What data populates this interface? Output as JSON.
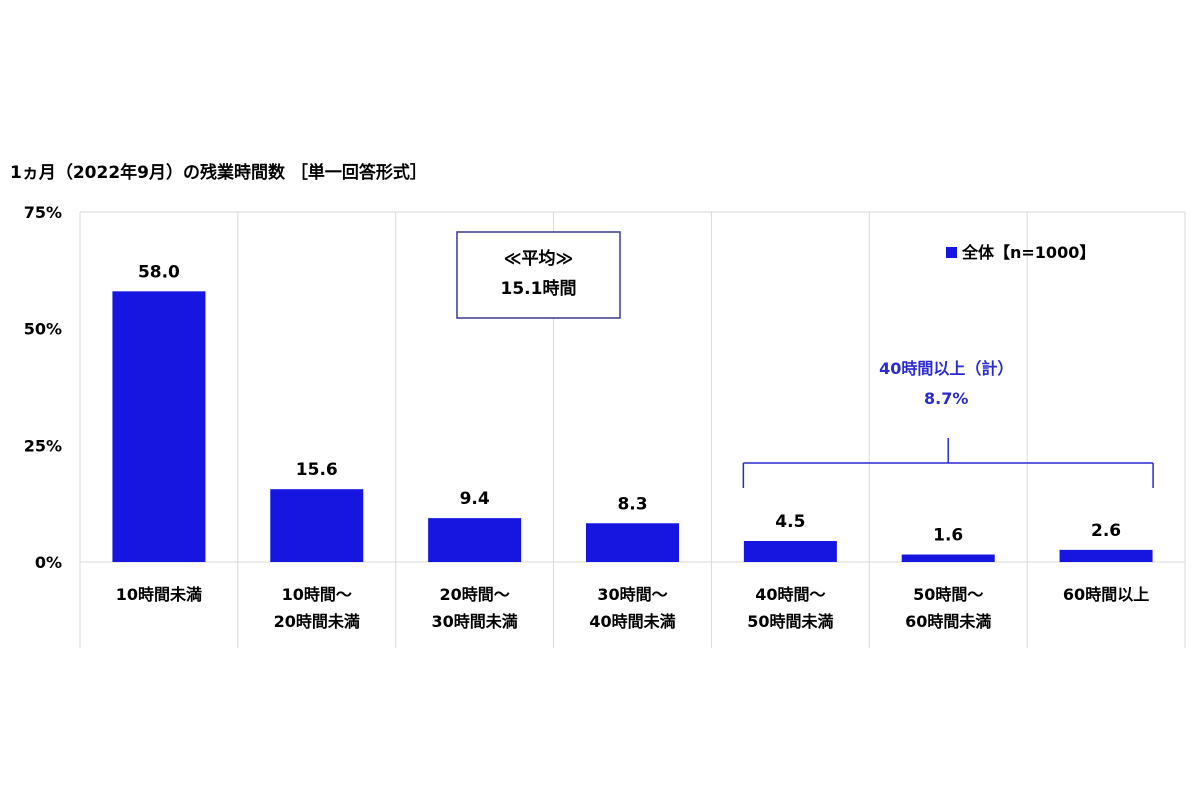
{
  "colors": {
    "bar": "#1616e0",
    "grid": "#d9d9d9",
    "annotation_blue": "#2a2ad0",
    "avg_box_border": "#3a3a8a"
  },
  "chart_data": {
    "type": "bar",
    "title": "1ヵ月（2022年9月）の残業時間数 ［単一回答形式］",
    "categories": [
      [
        "10時間未満"
      ],
      [
        "10時間～",
        "20時間未満"
      ],
      [
        "20時間～",
        "30時間未満"
      ],
      [
        "30時間～",
        "40時間未満"
      ],
      [
        "40時間～",
        "50時間未満"
      ],
      [
        "50時間～",
        "60時間未満"
      ],
      [
        "60時間以上"
      ]
    ],
    "series": [
      {
        "name": "全体【n=1000】",
        "values": [
          58.0,
          15.6,
          9.4,
          8.3,
          4.5,
          1.6,
          2.6
        ]
      }
    ],
    "value_labels": [
      "58.0",
      "15.6",
      "9.4",
      "8.3",
      "4.5",
      "1.6",
      "2.6"
    ],
    "ylim": [
      0,
      75
    ],
    "yticks": [
      0,
      25,
      50,
      75
    ],
    "ytick_labels": [
      "0%",
      "25%",
      "50%",
      "75%"
    ],
    "xlabel": "",
    "ylabel": "",
    "grid": "vertical",
    "legend": {
      "label": "全体【n=1000】",
      "placement": "top-right"
    },
    "annotations": {
      "average": {
        "lines": [
          "≪平均≫",
          "15.1時間"
        ]
      },
      "group": {
        "lines": [
          "40時間以上（計）",
          "8.7%"
        ],
        "range": [
          4,
          6
        ]
      }
    }
  }
}
